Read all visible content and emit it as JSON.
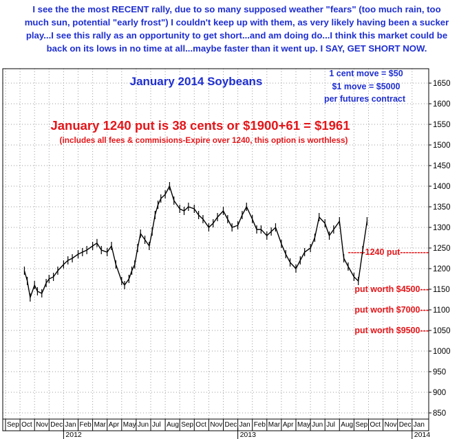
{
  "header": {
    "commentary": "I see the the most RECENT rally, due to so many supposed weather \"fears\" (too much rain, too much sun, potential \"early frost\") I couldn't keep up with them, as very likely having been a sucker play...I see this rally as an opportunity to get short...and am doing do...I think this market could be back on its lows in no time at all...maybe faster than it went up. I SAY, GET SHORT NOW."
  },
  "chart_data": {
    "type": "line",
    "title": "January 2014 Soybeans",
    "contract_notes": [
      "1 cent move = $50",
      "$1 move = $5000",
      "per futures contract"
    ],
    "put_headline": "January 1240 put is 38 cents or $1900+61 = $1961",
    "put_subline": "(includes all fees & commisions-Expire over 1240, this option is worthless)",
    "ylim": [
      800,
      1700
    ],
    "y_ticks": [
      850,
      900,
      950,
      1000,
      1050,
      1100,
      1150,
      1200,
      1250,
      1300,
      1350,
      1400,
      1450,
      1500,
      1550,
      1600,
      1650
    ],
    "x_ticks": [
      "Sep",
      "Oct",
      "Nov",
      "Dec",
      "Jan",
      "Feb",
      "Mar",
      "Apr",
      "May",
      "Jun",
      "Jul",
      "Aug",
      "Sep",
      "Oct",
      "Nov",
      "Dec",
      "Jan",
      "Feb",
      "Mar",
      "Apr",
      "May",
      "Jun",
      "Jul",
      "Aug",
      "Sep",
      "Oct",
      "Nov",
      "Dec",
      "Jan"
    ],
    "year_labels": [
      {
        "label": "2012",
        "month_index": 4
      },
      {
        "label": "2013",
        "month_index": 16
      },
      {
        "label": "2014",
        "month_index": 28
      }
    ],
    "series": [
      {
        "x": [
          1.3,
          1.5,
          1.7,
          2.0,
          2.2,
          2.5,
          2.8,
          3.0,
          3.3,
          3.6,
          4.0,
          4.3,
          4.6,
          5.0,
          5.3,
          5.6,
          6.0,
          6.3,
          6.6,
          7.0,
          7.3,
          7.6,
          8.0,
          8.2,
          8.5,
          8.7,
          8.9,
          9.1,
          9.3,
          9.6,
          9.9,
          10.1,
          10.3,
          10.5,
          10.7,
          11.0,
          11.3,
          11.6,
          12.0,
          12.3,
          12.6,
          13.0,
          13.3,
          13.6,
          14.0,
          14.3,
          14.6,
          15.0,
          15.3,
          15.6,
          16.0,
          16.3,
          16.6,
          17.0,
          17.3,
          17.6,
          18.0,
          18.3,
          18.6,
          19.0,
          19.3,
          19.6,
          20.0,
          20.3,
          20.6,
          21.0,
          21.3,
          21.6,
          22.0,
          22.3,
          22.6,
          23.0,
          23.3,
          23.6,
          24.0,
          24.3,
          24.6,
          24.9
        ],
        "values": [
          1195,
          1170,
          1130,
          1160,
          1145,
          1140,
          1165,
          1175,
          1180,
          1195,
          1210,
          1220,
          1225,
          1235,
          1240,
          1245,
          1255,
          1262,
          1245,
          1240,
          1255,
          1210,
          1170,
          1160,
          1175,
          1195,
          1210,
          1250,
          1285,
          1270,
          1255,
          1290,
          1330,
          1355,
          1370,
          1380,
          1400,
          1365,
          1345,
          1340,
          1350,
          1345,
          1330,
          1320,
          1300,
          1310,
          1325,
          1340,
          1320,
          1300,
          1305,
          1330,
          1350,
          1320,
          1295,
          1295,
          1280,
          1290,
          1300,
          1260,
          1235,
          1215,
          1200,
          1220,
          1240,
          1250,
          1275,
          1325,
          1310,
          1280,
          1295,
          1315,
          1225,
          1205,
          1180,
          1170,
          1245,
          1315
        ]
      }
    ],
    "level_labels": [
      {
        "text": "------1240 put----------",
        "value": 1240
      },
      {
        "text": "put worth $4500---",
        "value": 1150
      },
      {
        "text": "put worth $7000---",
        "value": 1100
      },
      {
        "text": "put worth $9500---",
        "value": 1050
      }
    ],
    "colors": {
      "title": "#1f2fd0",
      "annotation": "#e4161a",
      "series": "#000000",
      "grid": "#9a9a9a"
    }
  }
}
